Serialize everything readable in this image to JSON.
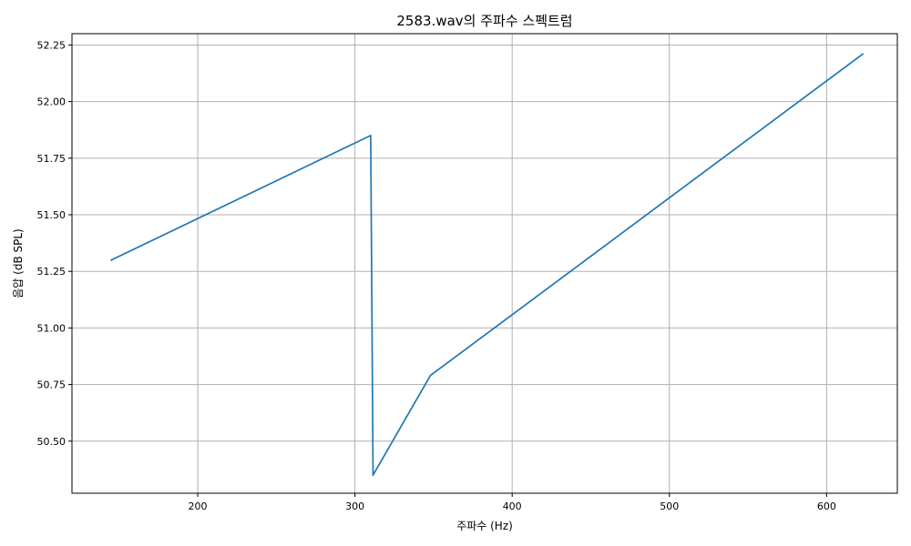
{
  "chart_data": {
    "type": "line",
    "title": "2583.wav의 주파수 스펙트럼",
    "xlabel": "주파수 (Hz)",
    "ylabel": "음압 (dB SPL)",
    "xlim": [
      120,
      645
    ],
    "ylim": [
      50.27,
      52.3
    ],
    "xticks": [
      200,
      300,
      400,
      500,
      600
    ],
    "yticks": [
      50.5,
      50.75,
      51.0,
      51.25,
      51.5,
      51.75,
      52.0,
      52.25
    ],
    "ytick_format": "fixed2",
    "grid": true,
    "legend": "none",
    "series": [
      {
        "color": "#1f77b4",
        "points": [
          {
            "x": 145,
            "y": 51.3
          },
          {
            "x": 310,
            "y": 51.85
          },
          {
            "x": 311.5,
            "y": 50.35
          },
          {
            "x": 348,
            "y": 50.79
          },
          {
            "x": 623,
            "y": 52.21
          }
        ]
      }
    ]
  }
}
